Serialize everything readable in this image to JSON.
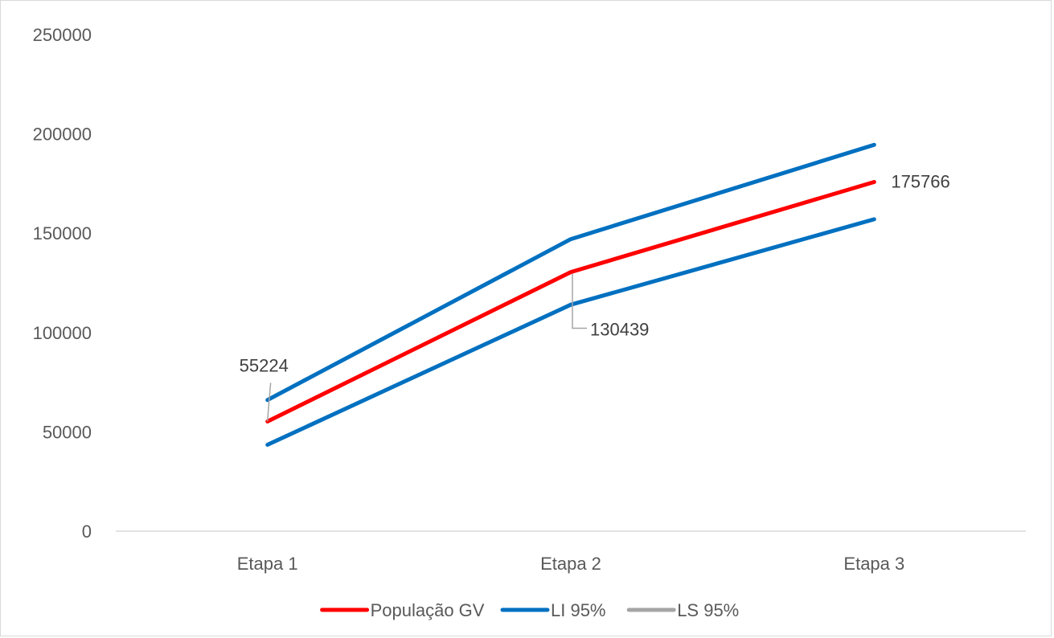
{
  "chart_data": {
    "type": "line",
    "title": "",
    "xlabel": "",
    "ylabel": "",
    "categories": [
      "Etapa 1",
      "Etapa 2",
      "Etapa 3"
    ],
    "ylim": [
      0,
      250000
    ],
    "yticks": [
      0,
      50000,
      100000,
      150000,
      200000,
      250000
    ],
    "grid": false,
    "legend_position": "bottom",
    "series": [
      {
        "name": "População GV",
        "values": [
          55224,
          130439,
          175766
        ],
        "color": "#ff0000",
        "data_labels": [
          "55224",
          "130439",
          "175766"
        ]
      },
      {
        "name": "LI 95%",
        "values": [
          66000,
          147000,
          194500
        ],
        "color": "#0070c0"
      },
      {
        "name": "LS 95%",
        "values": [
          43500,
          114000,
          157000
        ],
        "color": "#0070c0",
        "legend_color": "#a5a5a5"
      }
    ]
  }
}
